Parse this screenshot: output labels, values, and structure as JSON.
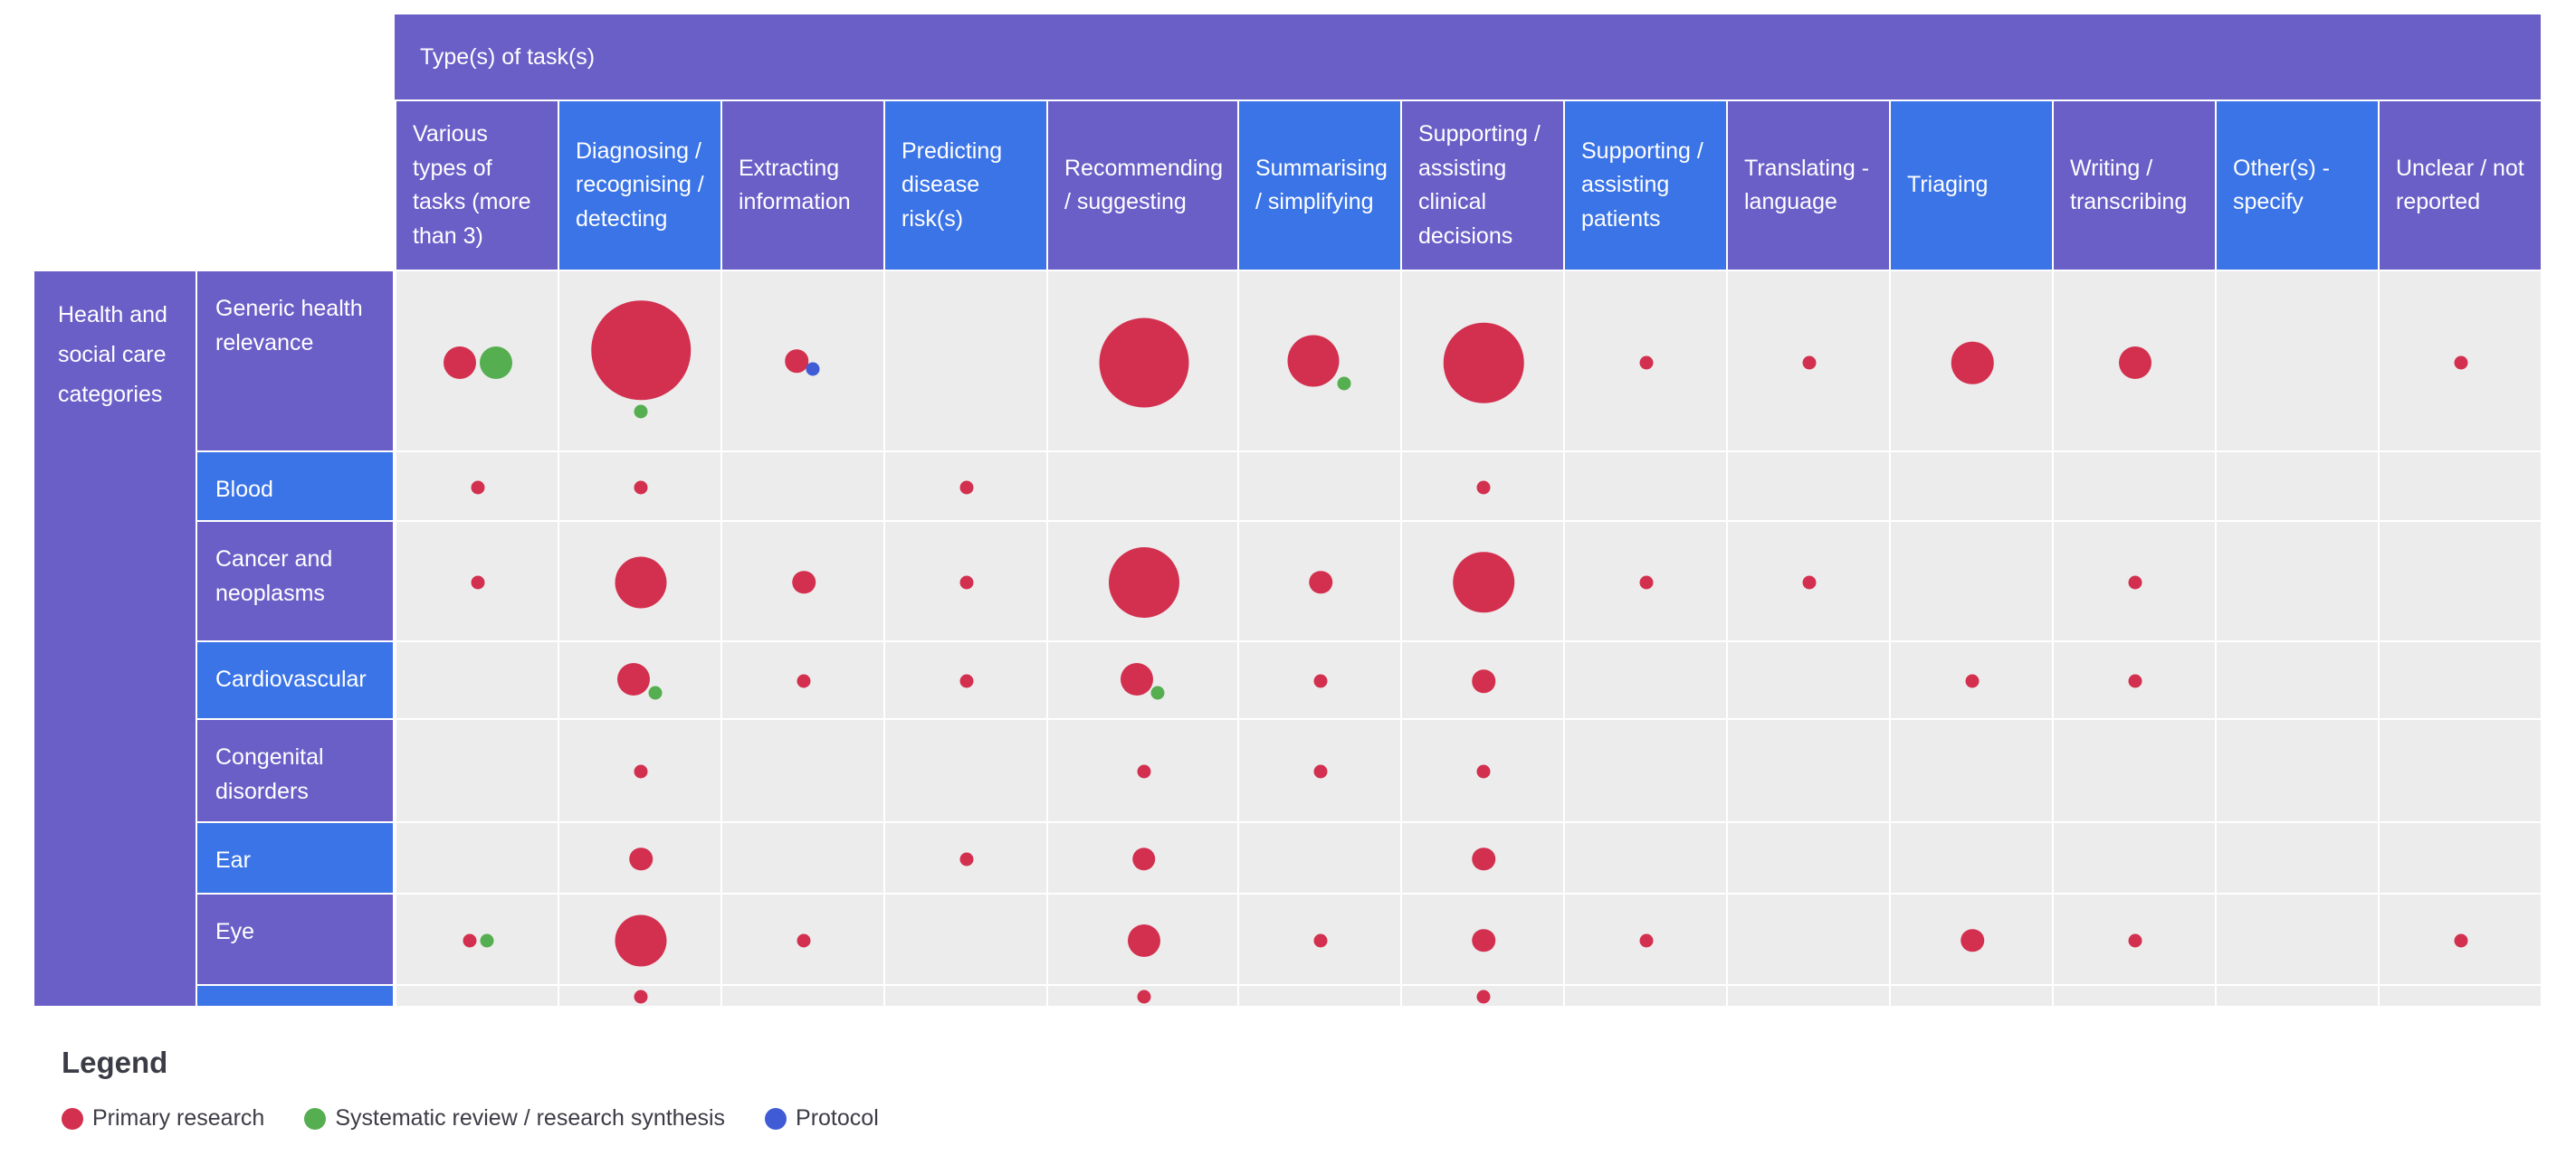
{
  "colors": {
    "header_purple": "#6a5fc7",
    "header_blue": "#3b74e6",
    "cell_bg": "#ececec",
    "primary": "#d3304f",
    "systematic": "#55ae4f",
    "protocol": "#3f5bd6"
  },
  "table": {
    "top_header": "Type(s) of task(s)",
    "group_header": "Health and social care categories",
    "columns": [
      {
        "label": "Various types of tasks (more than 3)",
        "color": "purple"
      },
      {
        "label": "Diagnosing / recognising / detecting",
        "color": "blue"
      },
      {
        "label": "Extracting information",
        "color": "purple"
      },
      {
        "label": "Predicting disease risk(s)",
        "color": "blue"
      },
      {
        "label": "Recommending / suggesting",
        "color": "purple"
      },
      {
        "label": "Summarising / simplifying",
        "color": "blue"
      },
      {
        "label": "Supporting / assisting clinical decisions",
        "color": "purple"
      },
      {
        "label": "Supporting / assisting patients",
        "color": "blue"
      },
      {
        "label": "Translating - language",
        "color": "purple"
      },
      {
        "label": "Triaging",
        "color": "blue"
      },
      {
        "label": "Writing / transcribing",
        "color": "purple"
      },
      {
        "label": "Other(s) - specify",
        "color": "blue"
      },
      {
        "label": "Unclear / not reported",
        "color": "purple"
      }
    ],
    "rows": [
      {
        "label": "Generic health relevance",
        "color": "purple"
      },
      {
        "label": "Blood",
        "color": "blue"
      },
      {
        "label": "Cancer and neoplasms",
        "color": "purple"
      },
      {
        "label": "Cardiovascular",
        "color": "blue"
      },
      {
        "label": "Congenital disorders",
        "color": "purple"
      },
      {
        "label": "Ear",
        "color": "blue"
      },
      {
        "label": "Eye",
        "color": "purple"
      },
      {
        "label": "",
        "color": "blue"
      }
    ],
    "bubbles": [
      {
        "row": 0,
        "col": 0,
        "type": "primary",
        "size": 3
      },
      {
        "row": 0,
        "col": 0,
        "type": "systematic",
        "size": 3
      },
      {
        "row": 0,
        "col": 1,
        "type": "primary",
        "size": 10
      },
      {
        "row": 0,
        "col": 1,
        "type": "systematic",
        "size": 1
      },
      {
        "row": 0,
        "col": 2,
        "type": "primary",
        "size": 2
      },
      {
        "row": 0,
        "col": 2,
        "type": "protocol",
        "size": 1
      },
      {
        "row": 0,
        "col": 4,
        "type": "primary",
        "size": 9
      },
      {
        "row": 0,
        "col": 5,
        "type": "primary",
        "size": 5
      },
      {
        "row": 0,
        "col": 5,
        "type": "systematic",
        "size": 1
      },
      {
        "row": 0,
        "col": 6,
        "type": "primary",
        "size": 8
      },
      {
        "row": 0,
        "col": 7,
        "type": "primary",
        "size": 1
      },
      {
        "row": 0,
        "col": 8,
        "type": "primary",
        "size": 1
      },
      {
        "row": 0,
        "col": 9,
        "type": "primary",
        "size": 4
      },
      {
        "row": 0,
        "col": 10,
        "type": "primary",
        "size": 3
      },
      {
        "row": 0,
        "col": 12,
        "type": "primary",
        "size": 1
      },
      {
        "row": 1,
        "col": 0,
        "type": "primary",
        "size": 1
      },
      {
        "row": 1,
        "col": 1,
        "type": "primary",
        "size": 1
      },
      {
        "row": 1,
        "col": 3,
        "type": "primary",
        "size": 1
      },
      {
        "row": 1,
        "col": 6,
        "type": "primary",
        "size": 1
      },
      {
        "row": 2,
        "col": 0,
        "type": "primary",
        "size": 1
      },
      {
        "row": 2,
        "col": 1,
        "type": "primary",
        "size": 5
      },
      {
        "row": 2,
        "col": 2,
        "type": "primary",
        "size": 2
      },
      {
        "row": 2,
        "col": 3,
        "type": "primary",
        "size": 1
      },
      {
        "row": 2,
        "col": 4,
        "type": "primary",
        "size": 7
      },
      {
        "row": 2,
        "col": 5,
        "type": "primary",
        "size": 2
      },
      {
        "row": 2,
        "col": 6,
        "type": "primary",
        "size": 6
      },
      {
        "row": 2,
        "col": 7,
        "type": "primary",
        "size": 1
      },
      {
        "row": 2,
        "col": 8,
        "type": "primary",
        "size": 1
      },
      {
        "row": 2,
        "col": 10,
        "type": "primary",
        "size": 1
      },
      {
        "row": 3,
        "col": 1,
        "type": "primary",
        "size": 3
      },
      {
        "row": 3,
        "col": 1,
        "type": "systematic",
        "size": 1
      },
      {
        "row": 3,
        "col": 2,
        "type": "primary",
        "size": 1
      },
      {
        "row": 3,
        "col": 3,
        "type": "primary",
        "size": 1
      },
      {
        "row": 3,
        "col": 4,
        "type": "primary",
        "size": 3
      },
      {
        "row": 3,
        "col": 4,
        "type": "systematic",
        "size": 1
      },
      {
        "row": 3,
        "col": 5,
        "type": "primary",
        "size": 1
      },
      {
        "row": 3,
        "col": 6,
        "type": "primary",
        "size": 2
      },
      {
        "row": 3,
        "col": 9,
        "type": "primary",
        "size": 1
      },
      {
        "row": 3,
        "col": 10,
        "type": "primary",
        "size": 1
      },
      {
        "row": 4,
        "col": 1,
        "type": "primary",
        "size": 1
      },
      {
        "row": 4,
        "col": 4,
        "type": "primary",
        "size": 1
      },
      {
        "row": 4,
        "col": 5,
        "type": "primary",
        "size": 1
      },
      {
        "row": 4,
        "col": 6,
        "type": "primary",
        "size": 1
      },
      {
        "row": 5,
        "col": 1,
        "type": "primary",
        "size": 2
      },
      {
        "row": 5,
        "col": 3,
        "type": "primary",
        "size": 1
      },
      {
        "row": 5,
        "col": 4,
        "type": "primary",
        "size": 2
      },
      {
        "row": 5,
        "col": 6,
        "type": "primary",
        "size": 2
      },
      {
        "row": 6,
        "col": 0,
        "type": "primary",
        "size": 1
      },
      {
        "row": 6,
        "col": 0,
        "type": "systematic",
        "size": 1
      },
      {
        "row": 6,
        "col": 1,
        "type": "primary",
        "size": 5
      },
      {
        "row": 6,
        "col": 2,
        "type": "primary",
        "size": 1
      },
      {
        "row": 6,
        "col": 4,
        "type": "primary",
        "size": 3
      },
      {
        "row": 6,
        "col": 5,
        "type": "primary",
        "size": 1
      },
      {
        "row": 6,
        "col": 6,
        "type": "primary",
        "size": 2
      },
      {
        "row": 6,
        "col": 7,
        "type": "primary",
        "size": 1
      },
      {
        "row": 6,
        "col": 9,
        "type": "primary",
        "size": 2
      },
      {
        "row": 6,
        "col": 10,
        "type": "primary",
        "size": 1
      },
      {
        "row": 6,
        "col": 12,
        "type": "primary",
        "size": 1
      },
      {
        "row": 7,
        "col": 1,
        "type": "primary",
        "size": 1
      },
      {
        "row": 7,
        "col": 4,
        "type": "primary",
        "size": 1
      },
      {
        "row": 7,
        "col": 6,
        "type": "primary",
        "size": 1
      }
    ]
  },
  "legend": {
    "title": "Legend",
    "items": [
      {
        "label": "Primary research",
        "type": "primary"
      },
      {
        "label": "Systematic review / research synthesis",
        "type": "systematic"
      },
      {
        "label": "Protocol",
        "type": "protocol"
      }
    ]
  }
}
